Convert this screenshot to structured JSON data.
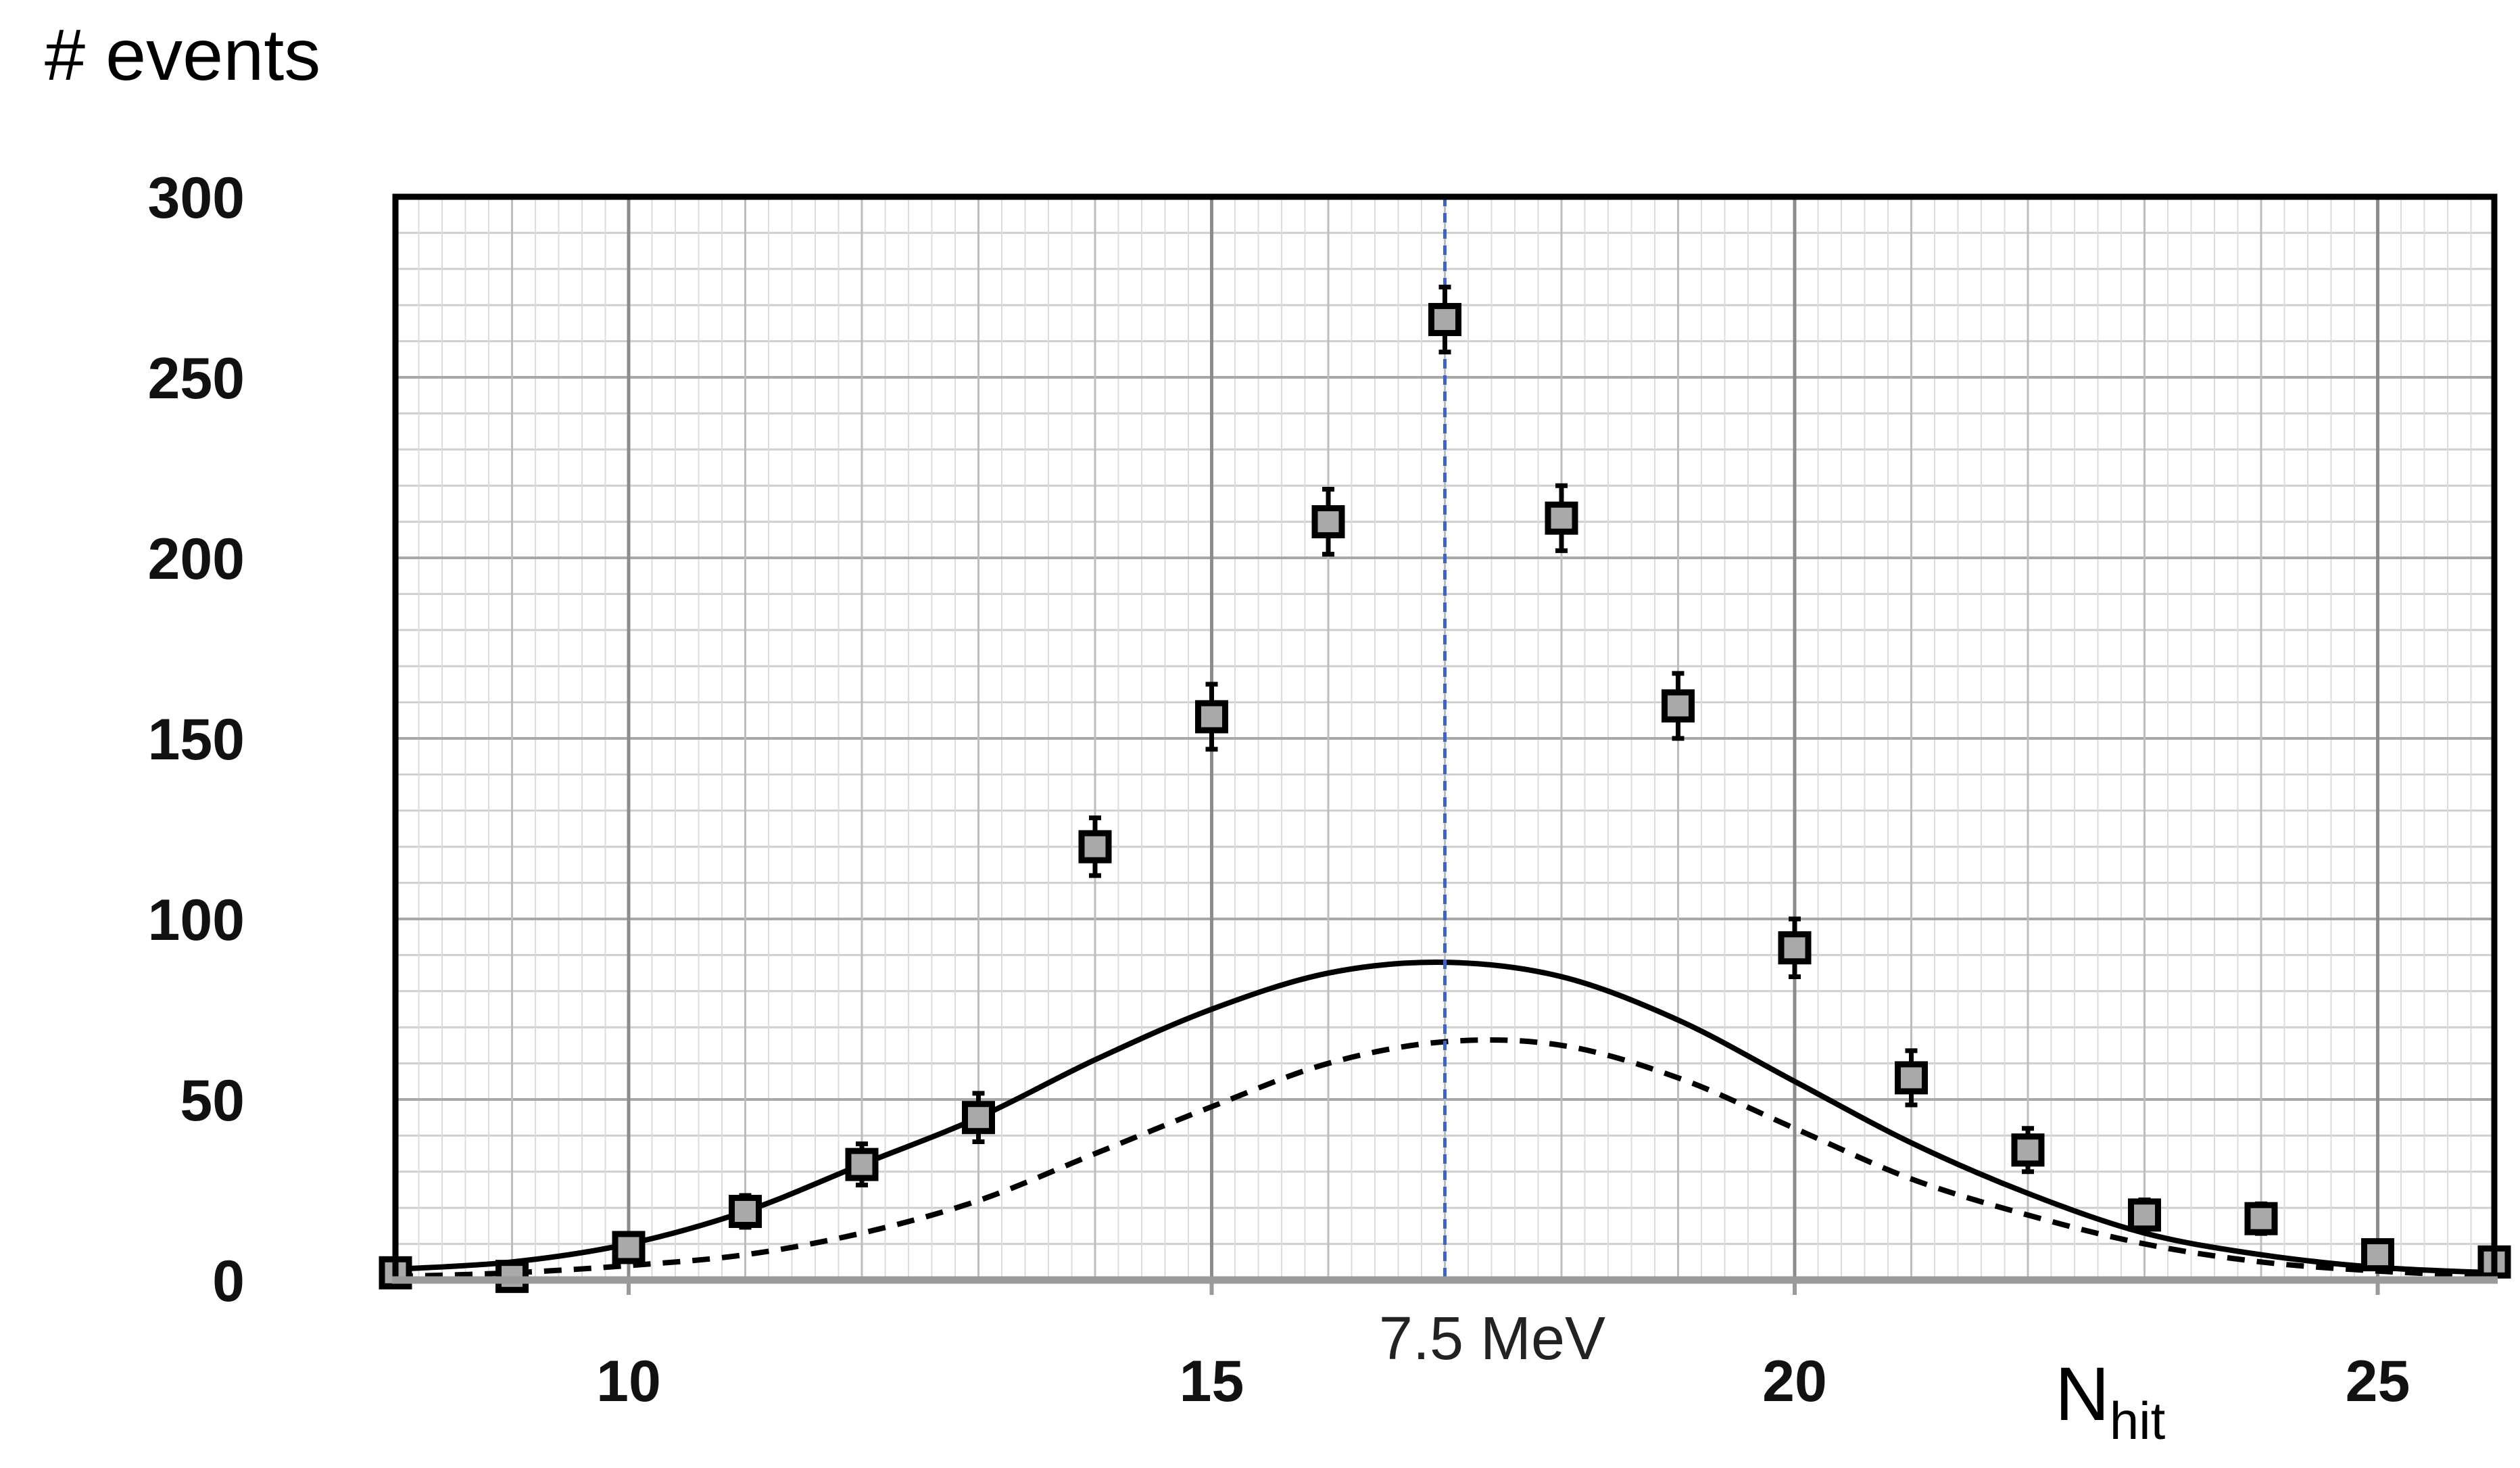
{
  "chart_data": {
    "type": "scatter",
    "ylabel": "# events",
    "xlabel_main": "N",
    "xlabel_sub": "hit",
    "xlim": [
      8,
      26
    ],
    "ylim": [
      0,
      300
    ],
    "x_ticks": [
      10,
      15,
      20,
      25
    ],
    "y_ticks": [
      0,
      50,
      100,
      150,
      200,
      250,
      300
    ],
    "grid": true,
    "annotation": {
      "text": "7.5 MeV",
      "x": 17
    },
    "series": [
      {
        "kind": "points_with_error",
        "marker": "square",
        "color": "#a9a9a9",
        "x": [
          8,
          9,
          10,
          11,
          12,
          13,
          14,
          15,
          16,
          17,
          18,
          19,
          20,
          21,
          22,
          23,
          24,
          25,
          26
        ],
        "y": [
          2,
          1,
          9,
          19,
          32,
          45,
          120,
          156,
          210,
          266,
          211,
          159,
          92,
          56,
          36,
          18,
          17,
          7,
          5
        ],
        "err": [
          1.4,
          1,
          3,
          4.4,
          5.7,
          6.7,
          8,
          9,
          9,
          9,
          9,
          9,
          8,
          7.5,
          6,
          4.2,
          4.1,
          2.6,
          2.2
        ]
      },
      {
        "kind": "curve",
        "style": "solid",
        "color": "#000000",
        "x": [
          8,
          9,
          10,
          11,
          12,
          13,
          14,
          15,
          16,
          17,
          18,
          19,
          20,
          21,
          22,
          23,
          24,
          25,
          26
        ],
        "y": [
          3,
          5,
          10,
          19,
          32,
          45,
          61,
          75,
          85,
          88,
          84,
          72,
          55,
          38,
          24,
          13,
          7,
          3.5,
          2
        ]
      },
      {
        "kind": "curve",
        "style": "dashed",
        "color": "#000000",
        "x": [
          8,
          9,
          10,
          11,
          12,
          13,
          14,
          15,
          16,
          17,
          18,
          19,
          20,
          21,
          22,
          23,
          24,
          25,
          26
        ],
        "y": [
          1,
          2,
          4,
          7,
          13,
          22,
          35,
          48,
          60,
          66,
          65,
          56,
          42,
          28,
          18,
          10,
          5,
          2.5,
          1
        ]
      }
    ]
  }
}
